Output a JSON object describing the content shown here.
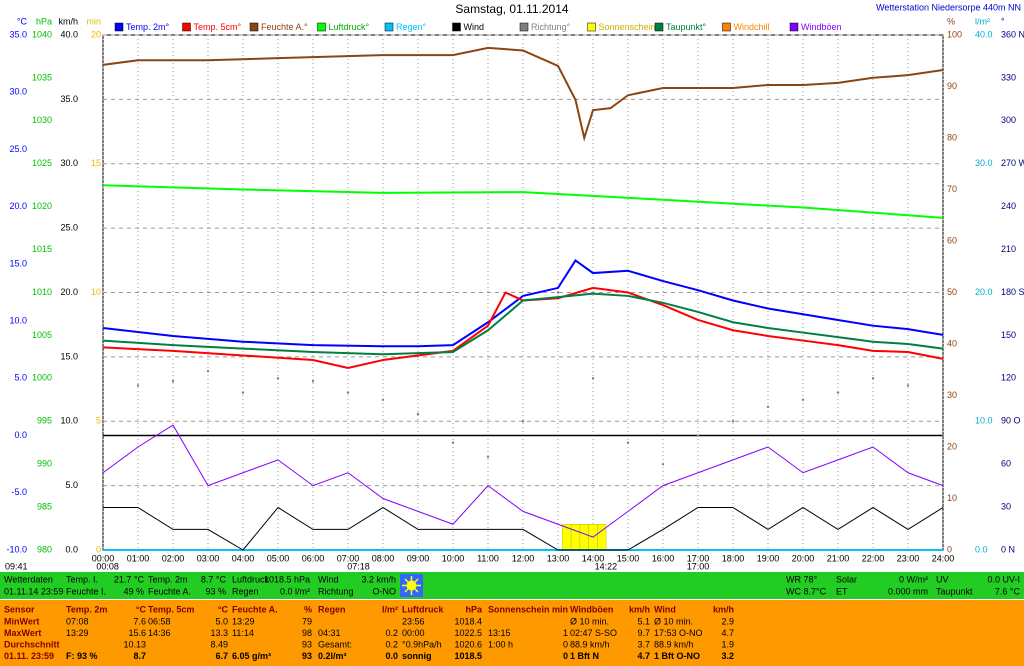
{
  "chart_data": {
    "type": "multi-axis-weather",
    "title": "Samstag, 01.11.2014",
    "station": "Wetterstation Niedersorpe 440m NN",
    "grid": true,
    "xlim": [
      0,
      24
    ],
    "xticks": [
      {
        "value": 0,
        "label": "00:00"
      },
      {
        "value": 1,
        "label": "01:00"
      },
      {
        "value": 2,
        "label": "02:00"
      },
      {
        "value": 3,
        "label": "03:00"
      },
      {
        "value": 4,
        "label": "04:00"
      },
      {
        "value": 5,
        "label": "05:00"
      },
      {
        "value": 6,
        "label": "06:00"
      },
      {
        "value": 7,
        "label": "07:00"
      },
      {
        "value": 8,
        "label": "08:00"
      },
      {
        "value": 9,
        "label": "09:00"
      },
      {
        "value": 10,
        "label": "10:00"
      },
      {
        "value": 11,
        "label": "11:00"
      },
      {
        "value": 12,
        "label": "12:00"
      },
      {
        "value": 13,
        "label": "13:00"
      },
      {
        "value": 14,
        "label": "14:00"
      },
      {
        "value": 15,
        "label": "15:00"
      },
      {
        "value": 16,
        "label": "16:00"
      },
      {
        "value": 17,
        "label": "17:00"
      },
      {
        "value": 18,
        "label": "18:00"
      },
      {
        "value": 19,
        "label": "19:00"
      },
      {
        "value": 20,
        "label": "20:00"
      },
      {
        "value": 21,
        "label": "21:00"
      },
      {
        "value": 22,
        "label": "22:00"
      },
      {
        "value": 23,
        "label": "23:00"
      },
      {
        "value": 24,
        "label": "24:00"
      }
    ],
    "axes": [
      {
        "unit": "°C",
        "side": "left",
        "color": "#0000ff",
        "lim": [
          -10,
          35
        ],
        "ticks": [
          {
            "value": -10,
            "label": "-10.0"
          },
          {
            "value": -5,
            "label": "-5.0"
          },
          {
            "value": 0,
            "label": "0.0"
          },
          {
            "value": 5,
            "label": "5.0"
          },
          {
            "value": 10,
            "label": "10.0"
          },
          {
            "value": 15,
            "label": "15.0"
          },
          {
            "value": 20,
            "label": "20.0"
          },
          {
            "value": 25,
            "label": "25.0"
          },
          {
            "value": 30,
            "label": "30.0"
          },
          {
            "value": 35,
            "label": "35.0"
          }
        ]
      },
      {
        "unit": "hPa",
        "side": "left",
        "color": "#00c000",
        "lim": [
          980,
          1040
        ],
        "ticks": [
          980,
          985,
          990,
          995,
          1000,
          1005,
          1010,
          1015,
          1020,
          1025,
          1030,
          1035,
          1040
        ]
      },
      {
        "unit": "km/h",
        "side": "left",
        "color": "#000000",
        "lim": [
          0,
          40
        ],
        "grid": true,
        "ticks": [
          {
            "value": 0,
            "label": "0.0"
          },
          {
            "value": 5,
            "label": "5.0"
          },
          {
            "value": 10,
            "label": "10.0"
          },
          {
            "value": 15,
            "label": "15.0"
          },
          {
            "value": 20,
            "label": "20.0"
          },
          {
            "value": 25,
            "label": "25.0"
          },
          {
            "value": 30,
            "label": "30.0"
          },
          {
            "value": 35,
            "label": "35.0"
          },
          {
            "value": 40,
            "label": "40.0"
          }
        ]
      },
      {
        "unit": "min",
        "side": "left",
        "color": "#e0c000",
        "lim": [
          0,
          20
        ],
        "ticks": [
          0,
          5,
          10,
          15,
          20
        ]
      },
      {
        "unit": "%",
        "side": "right",
        "color": "#8b4513",
        "lim": [
          0,
          100
        ],
        "ticks": [
          0,
          10,
          20,
          30,
          40,
          50,
          60,
          70,
          80,
          90,
          100
        ]
      },
      {
        "unit": "l/m²",
        "side": "right",
        "color": "#00b0d0",
        "lim": [
          0,
          40
        ],
        "ticks": [
          {
            "value": 0,
            "label": "0.0"
          },
          {
            "value": 10,
            "label": "10.0"
          },
          {
            "value": 20,
            "label": "20.0"
          },
          {
            "value": 30,
            "label": "30.0"
          },
          {
            "value": 40,
            "label": "40.0"
          }
        ]
      },
      {
        "unit": "°",
        "side": "right",
        "color": "#000080",
        "lim": [
          0,
          360
        ],
        "ticks": [
          {
            "value": 0,
            "label": "0 N"
          },
          {
            "value": 30,
            "label": "30"
          },
          {
            "value": 60,
            "label": "60"
          },
          {
            "value": 90,
            "label": "90 O"
          },
          {
            "value": 120,
            "label": "120"
          },
          {
            "value": 150,
            "label": "150"
          },
          {
            "value": 180,
            "label": "180 S"
          },
          {
            "value": 210,
            "label": "210"
          },
          {
            "value": 240,
            "label": "240"
          },
          {
            "value": 270,
            "label": "270 W"
          },
          {
            "value": 300,
            "label": "300"
          },
          {
            "value": 330,
            "label": "330"
          },
          {
            "value": 360,
            "label": "360 N"
          }
        ]
      }
    ],
    "series": [
      {
        "name": "Temp. 2m°",
        "color": "#0000ff",
        "axis": 0,
        "kind": "line",
        "x": [
          0,
          2,
          4,
          6,
          8,
          9,
          10,
          11,
          12,
          13,
          13.5,
          14,
          15,
          16,
          17,
          18,
          19,
          20,
          21,
          22,
          23,
          24
        ],
        "values": [
          9.4,
          8.7,
          8.2,
          7.9,
          7.8,
          7.8,
          7.9,
          9.9,
          12.2,
          12.9,
          15.3,
          14.2,
          14.4,
          13.5,
          12.7,
          11.8,
          11.1,
          10.6,
          10.1,
          9.6,
          9.3,
          8.8
        ]
      },
      {
        "name": "Temp. 5cm°",
        "color": "#ff0000",
        "axis": 0,
        "kind": "line",
        "x": [
          0,
          2,
          4,
          6,
          7,
          8,
          10,
          11,
          11.5,
          12,
          13,
          14,
          15,
          16,
          17,
          18,
          19,
          20,
          21,
          22,
          23,
          24
        ],
        "values": [
          7.7,
          7.4,
          7.0,
          6.6,
          5.9,
          6.6,
          7.4,
          9.6,
          12.5,
          11.8,
          12.0,
          12.9,
          12.5,
          11.4,
          10.1,
          9.2,
          8.7,
          8.3,
          7.9,
          7.4,
          7.3,
          6.7
        ]
      },
      {
        "name": "Feuchte A.°",
        "color": "#8b4513",
        "axis": 4,
        "kind": "line",
        "x": [
          0,
          1,
          3,
          5,
          8,
          10,
          11,
          12,
          13,
          13.5,
          13.75,
          14,
          14.5,
          15,
          16,
          17,
          18,
          19,
          20,
          21,
          22,
          23,
          24
        ],
        "values": [
          94.2,
          95.1,
          95.1,
          95.5,
          96.1,
          96.1,
          97.5,
          97,
          94,
          87.4,
          80,
          85.4,
          85.8,
          88.3,
          89.7,
          89.7,
          89.7,
          90.3,
          90.3,
          90.7,
          91.7,
          92.2,
          93.2
        ]
      },
      {
        "name": "Luftdruck°",
        "color": "#00ff00",
        "axis": 1,
        "kind": "line",
        "x": [
          0,
          4,
          8,
          12,
          16,
          20,
          24
        ],
        "values": [
          1022.5,
          1022,
          1021.6,
          1021.7,
          1020.8,
          1019.9,
          1018.7
        ]
      },
      {
        "name": "Regen°",
        "color": "#00c0ff",
        "axis": 5,
        "kind": "line",
        "x": [
          0,
          6,
          12,
          18,
          24
        ],
        "values": [
          0,
          0,
          0,
          0,
          0
        ]
      },
      {
        "name": "Wind",
        "color": "#000000",
        "axis": 2,
        "kind": "line",
        "x": [
          0,
          1,
          2,
          3,
          4,
          5,
          6,
          7,
          8,
          9,
          10,
          11,
          12,
          13,
          14,
          15,
          16,
          17,
          18,
          19,
          20,
          21,
          22,
          23,
          24
        ],
        "values": [
          3.3,
          3.3,
          1.6,
          1.6,
          0,
          3.3,
          1.6,
          1.6,
          3.3,
          1.6,
          1.6,
          1.6,
          1.6,
          0,
          0,
          0,
          1.6,
          3.3,
          3.3,
          1.6,
          3.3,
          1.6,
          3.3,
          1.6,
          3.3
        ]
      },
      {
        "name": "Richtung°",
        "color": "#808080",
        "axis": 6,
        "kind": "scatter",
        "x": [
          0,
          1,
          2,
          3,
          4,
          5,
          6,
          7,
          8,
          9,
          10,
          11,
          12,
          13,
          14,
          15,
          16,
          17,
          18,
          19,
          20,
          21,
          22,
          23,
          24
        ],
        "values": [
          120,
          115,
          118,
          125,
          110,
          120,
          118,
          110,
          105,
          95,
          75,
          65,
          90,
          180,
          120,
          75,
          60,
          80,
          90,
          100,
          105,
          110,
          120,
          115,
          80
        ]
      },
      {
        "name": "Sonnenschein",
        "color": "#ffff00",
        "axis": 3,
        "kind": "bar",
        "x": [
          13.25,
          13.5,
          13.75,
          14,
          14.25
        ],
        "values": [
          1,
          1,
          1,
          1,
          1
        ]
      },
      {
        "name": "Taupunkt°",
        "color": "#008040",
        "axis": 0,
        "kind": "line",
        "x": [
          0,
          2,
          4,
          6,
          8,
          10,
          11,
          12,
          13,
          14,
          15,
          16,
          17,
          18,
          19,
          20,
          21,
          22,
          23,
          24
        ],
        "values": [
          8.3,
          7.9,
          7.6,
          7.3,
          7.1,
          7.3,
          9.2,
          11.8,
          12.1,
          12.4,
          12.2,
          11.6,
          10.8,
          9.9,
          9.4,
          9.0,
          8.6,
          8.2,
          8.0,
          7.6
        ]
      },
      {
        "name": "Windchill",
        "color": "#ff8000",
        "axis": 0,
        "kind": "line",
        "x": [],
        "values": []
      },
      {
        "name": "Windböen",
        "color": "#8000ff",
        "axis": 2,
        "kind": "line",
        "x": [
          0,
          1,
          2,
          3,
          4,
          5,
          6,
          7,
          8,
          9,
          10,
          11,
          12,
          13,
          14,
          15,
          16,
          17,
          18,
          19,
          20,
          21,
          22,
          23,
          24
        ],
        "values": [
          6,
          8,
          9.7,
          5,
          6,
          7,
          5,
          6,
          4,
          3,
          2,
          5,
          3,
          2,
          1,
          3,
          5,
          6,
          7,
          8,
          6,
          7,
          8,
          6,
          5
        ]
      }
    ],
    "corner_time": "09:41",
    "time_markers": [
      "00:08",
      "07:18",
      "14:22",
      "17:00"
    ]
  },
  "current": {
    "left": [
      [
        [
          "Wetterdaten"
        ],
        [
          "01.11.14 23:59"
        ]
      ],
      [
        [
          "Temp. I.",
          "21.7 °C"
        ],
        [
          "Feuchte I.",
          "49 %"
        ]
      ],
      [
        [
          "Temp. 2m",
          "8.7 °C"
        ],
        [
          "Feuchte A.",
          "93 %"
        ]
      ],
      [
        [
          "Luftdruck",
          "1018.5 hPa"
        ],
        [
          "Regen",
          "0.0 l/m²"
        ]
      ],
      [
        [
          "Wind",
          "3.2 km/h"
        ],
        [
          "Richtung",
          "O-NO"
        ]
      ]
    ],
    "right": [
      [
        [
          "WR 78°"
        ],
        [
          "WC 8.7°C"
        ]
      ],
      [
        [
          "Solar",
          "0 W/m²"
        ],
        [
          "ET",
          "0.000 mm"
        ]
      ],
      [
        [
          "UV",
          "0.0 UV-I"
        ],
        [
          "Taupunkt",
          "7.6 °C"
        ]
      ]
    ]
  },
  "stats": [
    {
      "header": [
        "Sensor"
      ],
      "rows": [
        [
          "MinWert"
        ],
        [
          "MaxWert"
        ],
        [
          "Durchschnitt"
        ],
        [
          "01.11. 23:59"
        ]
      ]
    },
    {
      "header": [
        "Temp. 2m",
        "°C"
      ],
      "rows": [
        [
          "07:08",
          "7.6"
        ],
        [
          "13:29",
          "15.6"
        ],
        [
          "10.13"
        ],
        [
          "F: 93 %",
          "8.7"
        ]
      ]
    },
    {
      "header": [
        "Temp. 5cm",
        "°C"
      ],
      "rows": [
        [
          "06:58",
          "5.0"
        ],
        [
          "14:36",
          "13.3"
        ],
        [
          "8.49"
        ],
        [
          "6.7"
        ]
      ]
    },
    {
      "header": [
        "Feuchte A.",
        "%"
      ],
      "rows": [
        [
          "13:29",
          "79"
        ],
        [
          "11:14",
          "98"
        ],
        [
          "93"
        ],
        [
          "6.05 g/m³",
          "93"
        ]
      ]
    },
    {
      "header": [
        "Regen",
        "l/m²"
      ],
      "rows": [
        [],
        [
          "04:31",
          "0.2"
        ],
        [
          "Gesamt:",
          "0.2"
        ],
        [
          "0.2l/m³",
          "0.0"
        ]
      ]
    },
    {
      "header": [
        "Luftdruck",
        "hPa"
      ],
      "rows": [
        [
          "23:56",
          "1018.4"
        ],
        [
          "00:00",
          "1022.5"
        ],
        [
          "°0.9hPa/h",
          "1020.6"
        ],
        [
          "sonnig",
          "1018.5"
        ]
      ]
    },
    {
      "header": [
        "Sonnenschein",
        "min"
      ],
      "rows": [
        [],
        [
          "13:15",
          "1"
        ],
        [
          "1:00 h",
          "0"
        ],
        [
          "0"
        ]
      ]
    },
    {
      "header": [
        "Windböen",
        "km/h"
      ],
      "rows": [
        [
          "Ø 10 min.",
          "5.1"
        ],
        [
          "02:47 S-SO",
          "9.7"
        ],
        [
          "88.9 km/h",
          "3.7"
        ],
        [
          "1 Bft N",
          "4.7"
        ]
      ]
    },
    {
      "header": [
        "Wind",
        "km/h"
      ],
      "rows": [
        [
          "Ø 10 min.",
          "2.9"
        ],
        [
          "17:53 O-NO",
          "4.7"
        ],
        [
          "88.9 km/h",
          "1.9"
        ],
        [
          "1 Bft O-NO",
          "3.2"
        ]
      ]
    }
  ]
}
